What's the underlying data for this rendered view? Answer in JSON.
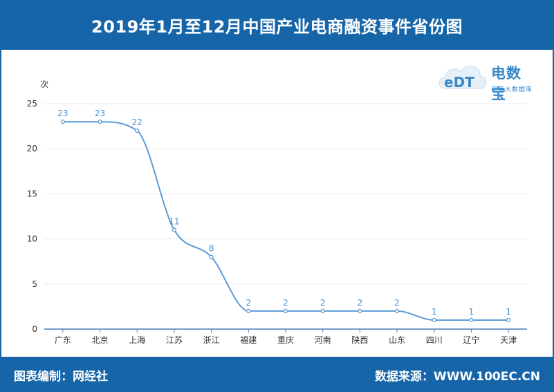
{
  "header": {
    "title": "2019年1月至12月中国产业电商融资事件省份图"
  },
  "footer": {
    "left": "图表编制：网经社",
    "right": "数据来源：WWW.100EC.CN"
  },
  "logo": {
    "mark": "eDT",
    "brand": "电数宝",
    "tagline": "电商大数据库"
  },
  "colors": {
    "header_bg": "#1565a8",
    "line": "#5b9bd5",
    "label": "#4a8fd0"
  },
  "chart_data": {
    "type": "line",
    "title": "",
    "xlabel": "",
    "ylabel": "次",
    "ylim": [
      0,
      25
    ],
    "yticks": [
      0,
      5,
      10,
      15,
      20,
      25
    ],
    "grid": true,
    "smooth": true,
    "categories": [
      "广东",
      "北京",
      "上海",
      "江苏",
      "浙江",
      "福建",
      "重庆",
      "河南",
      "陕西",
      "山东",
      "四川",
      "辽宁",
      "天津"
    ],
    "series": [
      {
        "values": [
          23,
          23,
          22,
          11,
          8,
          2,
          2,
          2,
          2,
          2,
          1,
          1,
          1
        ]
      }
    ]
  }
}
